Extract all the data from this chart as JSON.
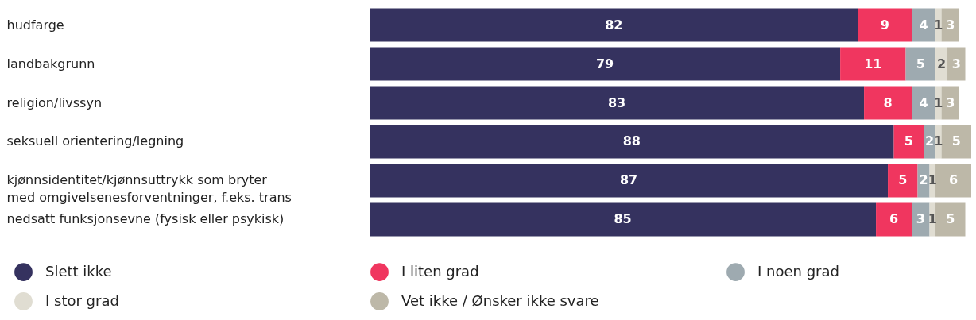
{
  "chart_data": {
    "type": "bar",
    "orientation": "horizontal",
    "stacked": true,
    "data_labels": true,
    "legend": "bottom",
    "categories": [
      "hudfarge",
      "landbakgrunn",
      "religion/livssyn",
      "seksuell orientering/legning",
      "kjønnsidentitet/kjønnsuttrykk som bryter med omgivelsenesforventninger, f.eks. trans",
      "nedsatt funksjonsevne (fysisk eller psykisk)"
    ],
    "series": [
      {
        "name": "Slett ikke",
        "color": "#35325f",
        "values": [
          82,
          79,
          83,
          88,
          87,
          85
        ]
      },
      {
        "name": "I liten grad",
        "color": "#f0365f",
        "values": [
          9,
          11,
          8,
          5,
          5,
          6
        ]
      },
      {
        "name": "I noen grad",
        "color": "#9eaab0",
        "values": [
          4,
          5,
          4,
          2,
          2,
          3
        ]
      },
      {
        "name": "I stor grad",
        "color": "#e0ddd2",
        "values": [
          1,
          2,
          1,
          1,
          1,
          1
        ]
      },
      {
        "name": "Vet ikke / Ønsker ikke svare",
        "color": "#bdb8a8",
        "values": [
          3,
          3,
          3,
          5,
          6,
          5
        ]
      }
    ]
  }
}
